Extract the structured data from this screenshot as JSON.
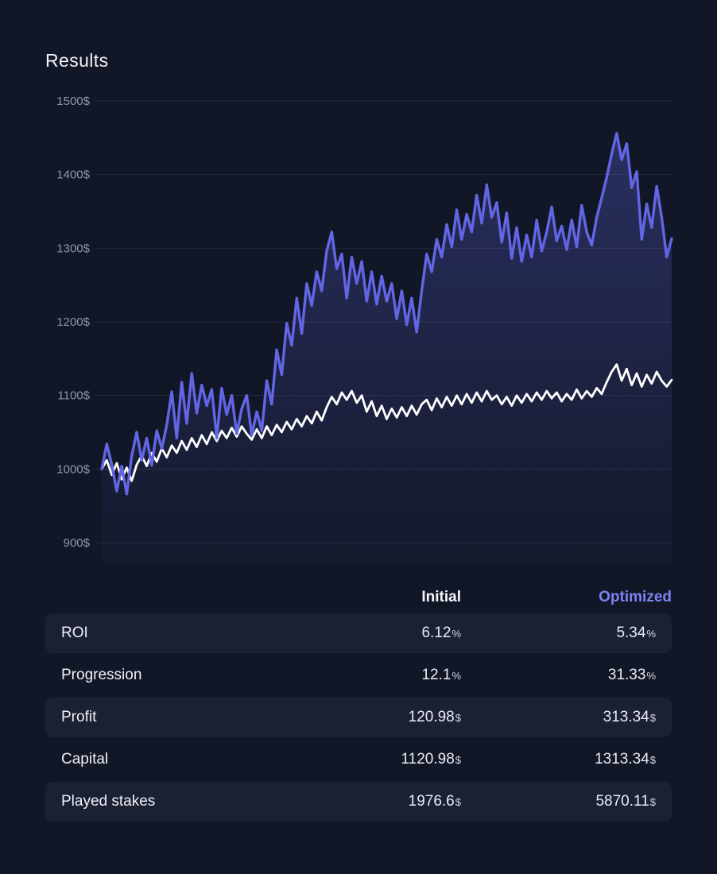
{
  "title": "Results",
  "colors": {
    "background": "#121727",
    "row_shade": "#1b2133",
    "gridline": "#252b3e",
    "axis_label": "#8f96aa",
    "optimized_accent": "#7d84f2",
    "optimized_line": "#6266e4",
    "initial_line": "#ffffff"
  },
  "chart_data": {
    "type": "line",
    "title": "Results",
    "xlabel": "",
    "ylabel": "",
    "ylim": [
      900,
      1500
    ],
    "grid": true,
    "legend_position": "none",
    "y_ticks": [
      {
        "value": 1500,
        "label": "1500$"
      },
      {
        "value": 1400,
        "label": "1400$"
      },
      {
        "value": 1300,
        "label": "1300$"
      },
      {
        "value": 1200,
        "label": "1200$"
      },
      {
        "value": 1100,
        "label": "1100$"
      },
      {
        "value": 1000,
        "label": "1000$"
      },
      {
        "value": 900,
        "label": "900$"
      }
    ],
    "series": [
      {
        "name": "Initial",
        "color": "#ffffff",
        "stroke_width": 2.8,
        "fill": false,
        "values": [
          1000,
          1012,
          992,
          1008,
          986,
          1002,
          984,
          1006,
          1018,
          1004,
          1022,
          1010,
          1028,
          1016,
          1032,
          1022,
          1038,
          1026,
          1042,
          1030,
          1046,
          1034,
          1050,
          1038,
          1052,
          1042,
          1056,
          1044,
          1058,
          1048,
          1040,
          1054,
          1042,
          1058,
          1046,
          1060,
          1050,
          1064,
          1054,
          1068,
          1058,
          1072,
          1062,
          1078,
          1066,
          1084,
          1098,
          1088,
          1104,
          1094,
          1106,
          1090,
          1100,
          1078,
          1092,
          1072,
          1086,
          1068,
          1082,
          1070,
          1084,
          1072,
          1086,
          1074,
          1088,
          1094,
          1080,
          1096,
          1084,
          1098,
          1086,
          1100,
          1088,
          1102,
          1090,
          1104,
          1092,
          1106,
          1094,
          1100,
          1088,
          1098,
          1086,
          1100,
          1090,
          1102,
          1092,
          1104,
          1094,
          1106,
          1096,
          1104,
          1092,
          1102,
          1094,
          1108,
          1096,
          1106,
          1098,
          1110,
          1102,
          1118,
          1132,
          1142,
          1120,
          1136,
          1114,
          1130,
          1112,
          1128,
          1116,
          1132,
          1120,
          1112,
          1121
        ]
      },
      {
        "name": "Optimized",
        "color": "#6266e4",
        "stroke_width": 3.4,
        "fill": true,
        "fill_color": "#6266e4",
        "values": [
          1000,
          1034,
          1006,
          970,
          1004,
          966,
          1018,
          1050,
          1012,
          1042,
          1005,
          1052,
          1028,
          1060,
          1105,
          1042,
          1118,
          1062,
          1130,
          1076,
          1114,
          1086,
          1108,
          1042,
          1110,
          1074,
          1100,
          1048,
          1082,
          1100,
          1046,
          1078,
          1052,
          1120,
          1088,
          1162,
          1128,
          1198,
          1168,
          1232,
          1184,
          1252,
          1222,
          1268,
          1242,
          1296,
          1322,
          1272,
          1292,
          1232,
          1288,
          1252,
          1282,
          1228,
          1268,
          1224,
          1262,
          1228,
          1252,
          1204,
          1242,
          1196,
          1232,
          1186,
          1242,
          1292,
          1268,
          1312,
          1288,
          1332,
          1302,
          1352,
          1312,
          1346,
          1322,
          1372,
          1334,
          1386,
          1342,
          1362,
          1308,
          1348,
          1286,
          1328,
          1282,
          1318,
          1288,
          1338,
          1296,
          1322,
          1356,
          1310,
          1330,
          1298,
          1338,
          1302,
          1358,
          1322,
          1304,
          1342,
          1368,
          1396,
          1428,
          1456,
          1420,
          1442,
          1382,
          1404,
          1312,
          1360,
          1328,
          1384,
          1342,
          1288,
          1313
        ]
      }
    ]
  },
  "table": {
    "header": {
      "initial": "Initial",
      "optimized": "Optimized"
    },
    "rows": [
      {
        "label": "ROI",
        "initial": {
          "value": "6.12",
          "unit": "%"
        },
        "optimized": {
          "value": "5.34",
          "unit": "%"
        }
      },
      {
        "label": "Progression",
        "initial": {
          "value": "12.1",
          "unit": "%"
        },
        "optimized": {
          "value": "31.33",
          "unit": "%"
        }
      },
      {
        "label": "Profit",
        "initial": {
          "value": "120.98",
          "unit": "$"
        },
        "optimized": {
          "value": "313.34",
          "unit": "$"
        }
      },
      {
        "label": "Capital",
        "initial": {
          "value": "1120.98",
          "unit": "$"
        },
        "optimized": {
          "value": "1313.34",
          "unit": "$"
        }
      },
      {
        "label": "Played stakes",
        "initial": {
          "value": "1976.6",
          "unit": "$"
        },
        "optimized": {
          "value": "5870.11",
          "unit": "$"
        }
      }
    ]
  }
}
